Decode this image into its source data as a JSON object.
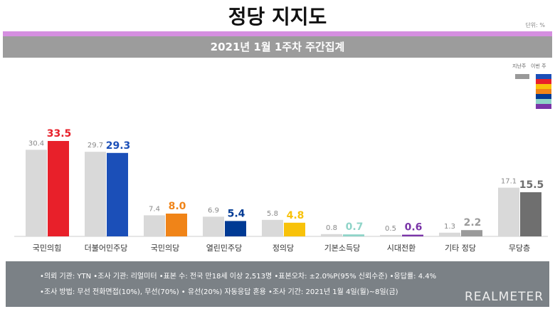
{
  "title": "정당 지지도",
  "unit": "단위: %",
  "subtitle": "2021년 1월 1주차 주간집계",
  "legend": {
    "previous": "지난주",
    "current": "이번 주",
    "current_colors": [
      "#1b4fb8",
      "#e8202a",
      "#f8c20a",
      "#f08418",
      "#003a94",
      "#8fd4c8",
      "#7a35a8"
    ]
  },
  "chart_data": {
    "type": "bar",
    "categories": [
      "국민의힘",
      "더불어민주당",
      "국민의당",
      "열린민주당",
      "정의당",
      "기본소득당",
      "시대전환",
      "기타 정당",
      "무당층"
    ],
    "series": [
      {
        "name": "지난주",
        "values": [
          30.4,
          29.7,
          7.4,
          6.9,
          5.8,
          0.8,
          0.5,
          1.3,
          17.1
        ],
        "color": "#d9d9d9"
      },
      {
        "name": "이번 주",
        "values": [
          33.5,
          29.3,
          8.0,
          5.4,
          4.8,
          0.7,
          0.6,
          2.2,
          15.5
        ],
        "colors": [
          "#e8202a",
          "#1b4fb8",
          "#f08418",
          "#003a94",
          "#f8c20a",
          "#8fd4c8",
          "#7a35a8",
          "#9a9a9a",
          "#6f6f6f"
        ]
      }
    ],
    "ylim": [
      0,
      35
    ]
  },
  "footer": {
    "line1": "•의뢰 기관: YTN •조사 기관: 리얼미터 •표본 수: 전국 만18세 이상 2,513명 •표본오차: ±2.0%P(95% 신뢰수준) •응답률: 4.4%",
    "line2": "•조사 방법: 무선 전화면접(10%), 무선(70%) • 유선(20%) 자동응답 혼용 •조사 기간: 2021년 1월 4일(월)~8일(금)",
    "logo": "REALMETER"
  }
}
